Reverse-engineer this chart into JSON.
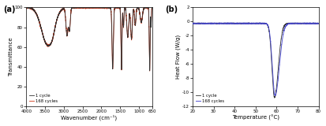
{
  "panel_a": {
    "label": "(a)",
    "xlabel": "Wavenumber (cm⁻¹)",
    "ylabel": "Transmittance",
    "xlim": [
      4000,
      650
    ],
    "ylim": [
      0,
      100
    ],
    "yticks": [
      0,
      20,
      40,
      60,
      80,
      100
    ],
    "xticks": [
      4000,
      3500,
      3000,
      2500,
      2000,
      1500,
      1000,
      650
    ],
    "line1_color": "#333333",
    "line2_color": "#cc2200",
    "legend": [
      "1 cycle",
      "168 cycles"
    ]
  },
  "panel_b": {
    "label": "(b)",
    "xlabel": "Temperature (°C)",
    "ylabel": "Heat Flow (W/g)",
    "xlim": [
      20,
      80
    ],
    "ylim": [
      -12,
      2
    ],
    "yticks": [
      2,
      0,
      -2,
      -4,
      -6,
      -8,
      -10,
      -12
    ],
    "xticks": [
      20,
      30,
      40,
      50,
      60,
      70,
      80
    ],
    "line1_color": "#333333",
    "line2_color": "#4444cc",
    "legend": [
      "1 cycle",
      "168 cycles"
    ]
  }
}
